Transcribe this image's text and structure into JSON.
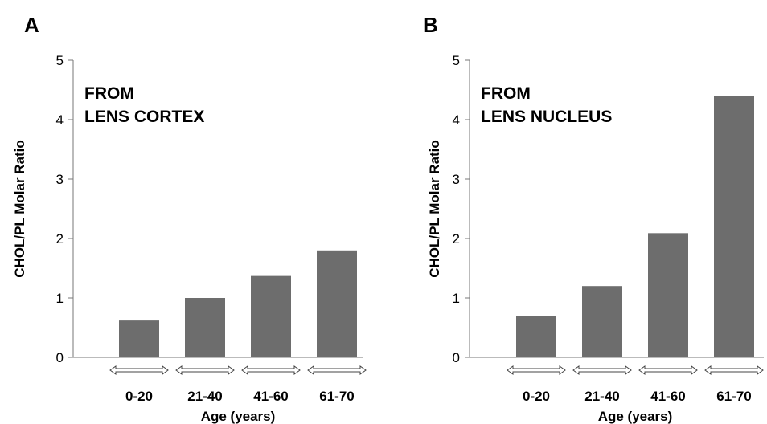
{
  "chart_data": [
    {
      "type": "bar",
      "panel_label": "A",
      "annotation": [
        "FROM",
        "LENS CORTEX"
      ],
      "categories": [
        "0-20",
        "21-40",
        "41-60",
        "61-70"
      ],
      "values": [
        0.62,
        1.0,
        1.37,
        1.8
      ],
      "ylabel": "CHOL/PL Molar Ratio",
      "xlabel": "Age (years)",
      "ylim": [
        0,
        5
      ],
      "yticks": [
        "0",
        "1",
        "2",
        "3",
        "4",
        "5"
      ],
      "bar_color": "#6d6d6d"
    },
    {
      "type": "bar",
      "panel_label": "B",
      "annotation": [
        "FROM",
        "LENS NUCLEUS"
      ],
      "categories": [
        "0-20",
        "21-40",
        "41-60",
        "61-70"
      ],
      "values": [
        0.7,
        1.2,
        2.09,
        4.4
      ],
      "ylabel": "CHOL/PL Molar Ratio",
      "xlabel": "Age (years)",
      "ylim": [
        0,
        5
      ],
      "yticks": [
        "0",
        "1",
        "2",
        "3",
        "4",
        "5"
      ],
      "bar_color": "#6d6d6d"
    }
  ]
}
